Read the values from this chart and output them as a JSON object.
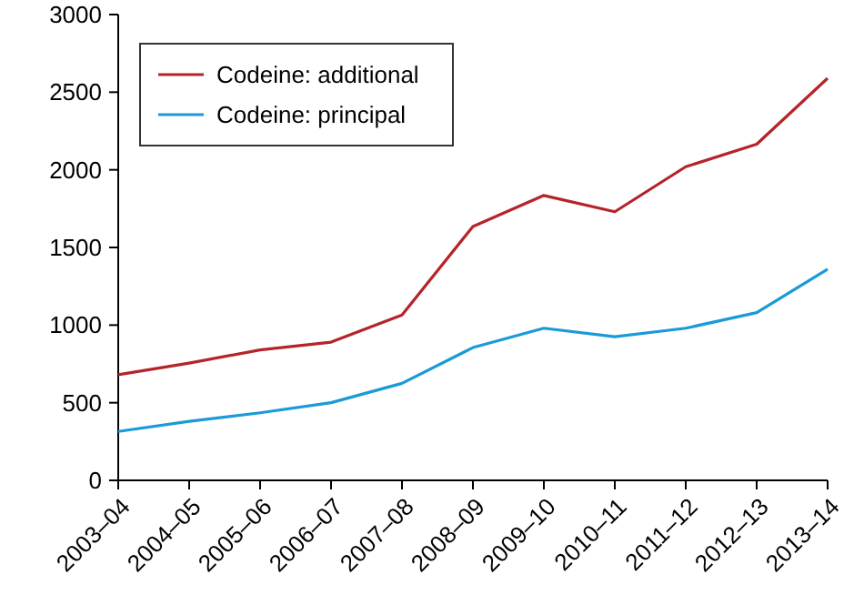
{
  "chart_data": {
    "type": "line",
    "categories": [
      "2003–04",
      "2004–05",
      "2005–06",
      "2006–07",
      "2007–08",
      "2008–09",
      "2009–10",
      "2010–11",
      "2011–12",
      "2012–13",
      "2013–14"
    ],
    "series": [
      {
        "name": "Codeine: additional",
        "color": "#b5242b",
        "values": [
          680,
          755,
          840,
          890,
          1065,
          1635,
          1835,
          1730,
          2020,
          2165,
          2590
        ]
      },
      {
        "name": "Codeine: principal",
        "color": "#1a9ad6",
        "values": [
          315,
          380,
          435,
          500,
          625,
          855,
          980,
          925,
          980,
          1080,
          1360
        ]
      }
    ],
    "ylim": [
      0,
      3000
    ],
    "yticks": [
      0,
      500,
      1000,
      1500,
      2000,
      2500,
      3000
    ],
    "legend": "top left",
    "grid": false,
    "marker": "none",
    "line_style": "solid"
  }
}
